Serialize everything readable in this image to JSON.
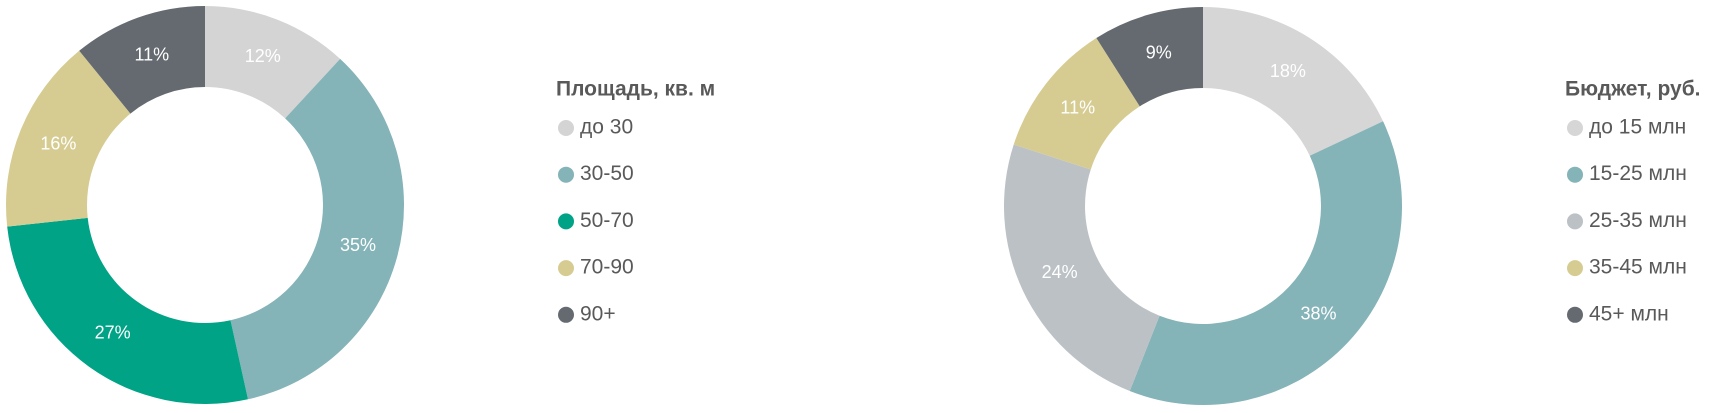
{
  "chart_data": [
    {
      "type": "donut",
      "legend_title": "Площадь, кв. м",
      "categories": [
        "до 30",
        "30-50",
        "50-70",
        "70-90",
        "90+"
      ],
      "values": [
        12,
        35,
        27,
        16,
        11
      ],
      "value_labels": [
        "12%",
        "35%",
        "27%",
        "16%",
        "11%"
      ],
      "colors": [
        "#d4d4d4",
        "#84b3b8",
        "#00a386",
        "#d6cc92",
        "#646a70"
      ]
    },
    {
      "type": "donut",
      "legend_title": "Бюджет, руб.",
      "categories": [
        "до 15 млн",
        "15-25 млн",
        "25-35 млн",
        "35-45 млн",
        "45+ млн"
      ],
      "values": [
        18,
        38,
        24,
        11,
        9
      ],
      "value_labels": [
        "18%",
        "38%",
        "24%",
        "11%",
        "9%"
      ],
      "colors": [
        "#d6d6d6",
        "#84b3b8",
        "#bcc1c5",
        "#d6cc92",
        "#646a70"
      ]
    }
  ]
}
